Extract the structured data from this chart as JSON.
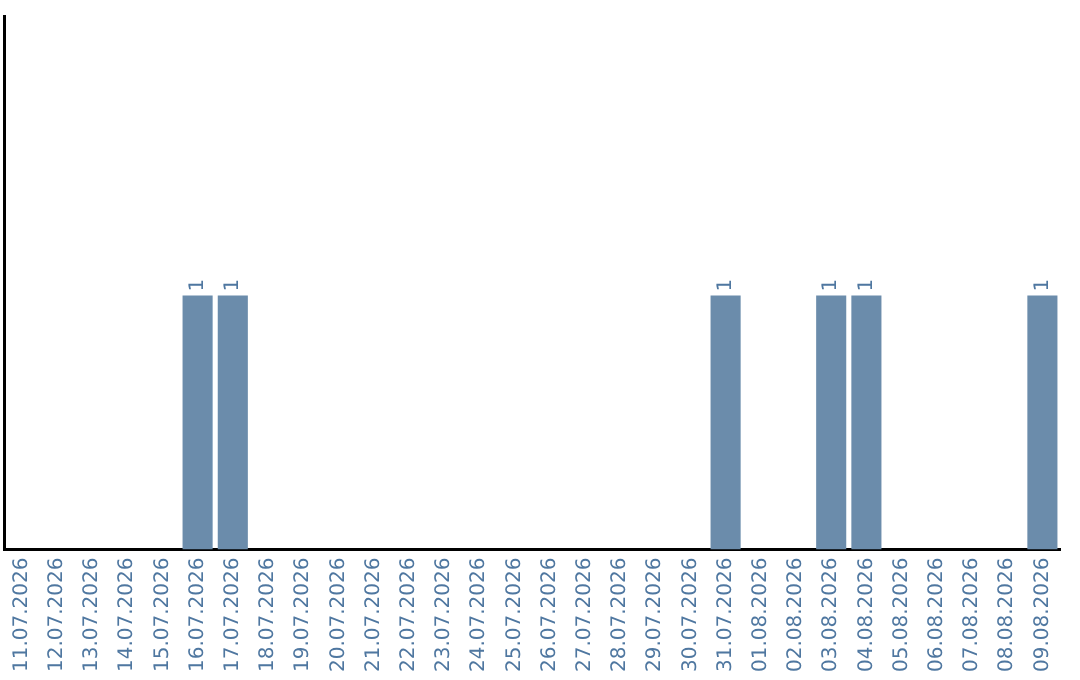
{
  "chart_data": {
    "type": "bar",
    "categories": [
      "11.07.2026",
      "12.07.2026",
      "13.07.2026",
      "14.07.2026",
      "15.07.2026",
      "16.07.2026",
      "17.07.2026",
      "18.07.2026",
      "19.07.2026",
      "20.07.2026",
      "21.07.2026",
      "22.07.2026",
      "23.07.2026",
      "24.07.2026",
      "25.07.2026",
      "26.07.2026",
      "27.07.2026",
      "28.07.2026",
      "29.07.2026",
      "30.07.2026",
      "31.07.2026",
      "01.08.2026",
      "02.08.2026",
      "03.08.2026",
      "04.08.2026",
      "05.08.2026",
      "06.08.2026",
      "07.08.2026",
      "08.08.2026",
      "09.08.2026"
    ],
    "values": [
      0,
      0,
      0,
      0,
      0,
      1,
      1,
      0,
      0,
      0,
      0,
      0,
      0,
      0,
      0,
      0,
      0,
      0,
      0,
      0,
      1,
      0,
      0,
      1,
      1,
      0,
      0,
      0,
      0,
      1
    ],
    "value_labels": [
      null,
      null,
      null,
      null,
      null,
      "1",
      "1",
      null,
      null,
      null,
      null,
      null,
      null,
      null,
      null,
      null,
      null,
      null,
      null,
      null,
      "1",
      null,
      null,
      "1",
      "1",
      null,
      null,
      null,
      null,
      "1"
    ],
    "color": "#6b8cab",
    "tick_labels": "x",
    "grid": false,
    "legend": false
  }
}
